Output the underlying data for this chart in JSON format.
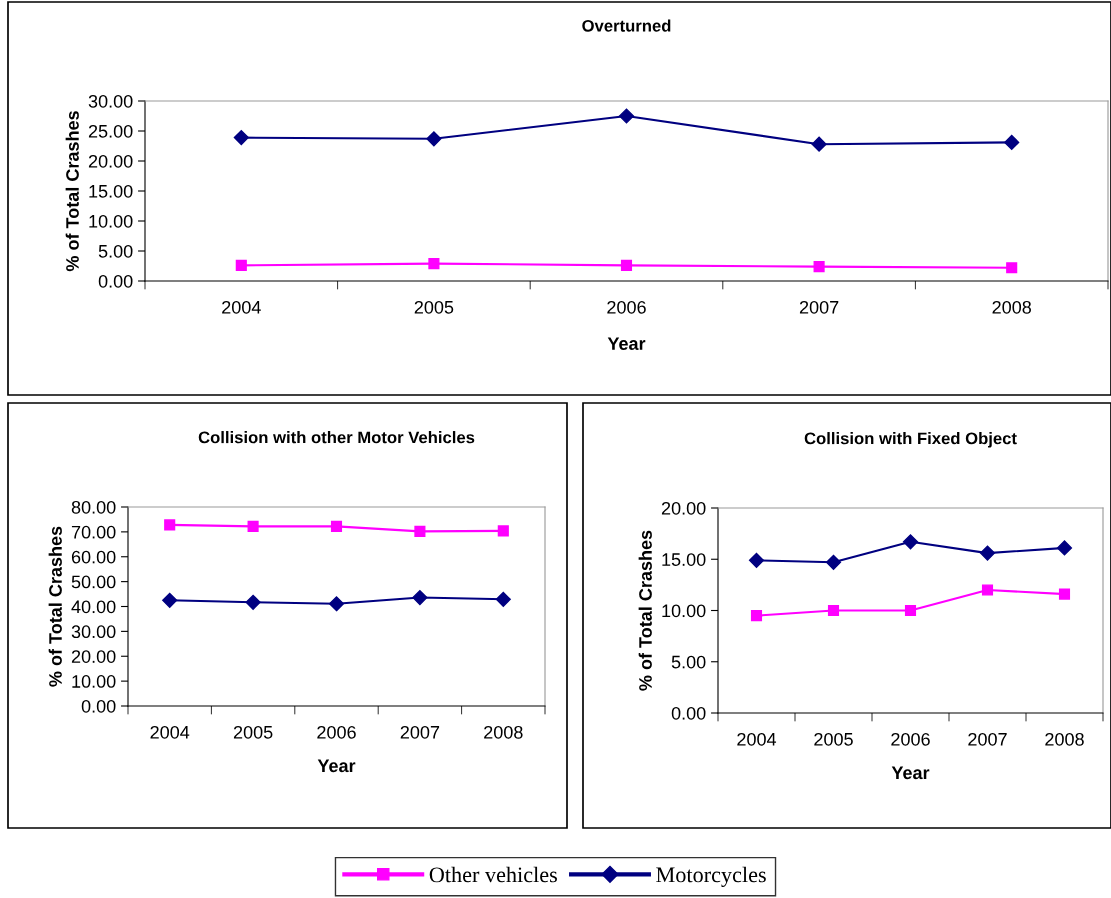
{
  "chart_data": [
    {
      "type": "line",
      "title": "Overturned",
      "xlabel": "Year",
      "ylabel": "% of Total Crashes",
      "categories": [
        "2004",
        "2005",
        "2006",
        "2007",
        "2008"
      ],
      "ylim": [
        0,
        30
      ],
      "yticks": [
        {
          "value": 0,
          "label": "0.00"
        },
        {
          "value": 5,
          "label": "5.00"
        },
        {
          "value": 10,
          "label": "10.00"
        },
        {
          "value": 15,
          "label": "15.00"
        },
        {
          "value": 20,
          "label": "20.00"
        },
        {
          "value": 25,
          "label": "25.00"
        },
        {
          "value": 30,
          "label": "30.00"
        }
      ],
      "grid": false,
      "line_style": "solid",
      "legend": "bottom",
      "series": [
        {
          "name": "Other vehicles",
          "color": "#ff00ff",
          "marker": "square",
          "values": [
            2.6,
            2.9,
            2.6,
            2.4,
            2.2
          ]
        },
        {
          "name": "Motorcycles",
          "color": "#000080",
          "marker": "diamond",
          "values": [
            23.9,
            23.7,
            27.5,
            22.8,
            23.1
          ]
        }
      ]
    },
    {
      "type": "line",
      "title": "Collision with other Motor Vehicles",
      "xlabel": "Year",
      "ylabel": "% of Total Crashes",
      "categories": [
        "2004",
        "2005",
        "2006",
        "2007",
        "2008"
      ],
      "ylim": [
        0,
        80
      ],
      "yticks": [
        {
          "value": 0,
          "label": "0.00"
        },
        {
          "value": 10,
          "label": "10.00"
        },
        {
          "value": 20,
          "label": "20.00"
        },
        {
          "value": 30,
          "label": "30.00"
        },
        {
          "value": 40,
          "label": "40.00"
        },
        {
          "value": 50,
          "label": "50.00"
        },
        {
          "value": 60,
          "label": "60.00"
        },
        {
          "value": 70,
          "label": "70.00"
        },
        {
          "value": 80,
          "label": "80.00"
        }
      ],
      "grid": false,
      "line_style": "solid",
      "legend": "bottom",
      "series": [
        {
          "name": "Other vehicles",
          "color": "#ff00ff",
          "marker": "square",
          "values": [
            72.8,
            72.2,
            72.2,
            70.2,
            70.4
          ]
        },
        {
          "name": "Motorcycles",
          "color": "#000080",
          "marker": "diamond",
          "values": [
            42.5,
            41.7,
            41.1,
            43.6,
            42.9
          ]
        }
      ]
    },
    {
      "type": "line",
      "title": "Collision with Fixed Object",
      "xlabel": "Year",
      "ylabel": "% of Total Crashes",
      "categories": [
        "2004",
        "2005",
        "2006",
        "2007",
        "2008"
      ],
      "ylim": [
        0,
        20
      ],
      "yticks": [
        {
          "value": 0,
          "label": "0.00"
        },
        {
          "value": 5,
          "label": "5.00"
        },
        {
          "value": 10,
          "label": "10.00"
        },
        {
          "value": 15,
          "label": "15.00"
        },
        {
          "value": 20,
          "label": "20.00"
        }
      ],
      "grid": false,
      "line_style": "solid",
      "legend": "bottom",
      "series": [
        {
          "name": "Other vehicles",
          "color": "#ff00ff",
          "marker": "square",
          "values": [
            9.5,
            10.0,
            10.0,
            12.0,
            11.6
          ]
        },
        {
          "name": "Motorcycles",
          "color": "#000080",
          "marker": "diamond",
          "values": [
            14.9,
            14.7,
            16.7,
            15.6,
            16.1
          ]
        }
      ]
    }
  ]
}
